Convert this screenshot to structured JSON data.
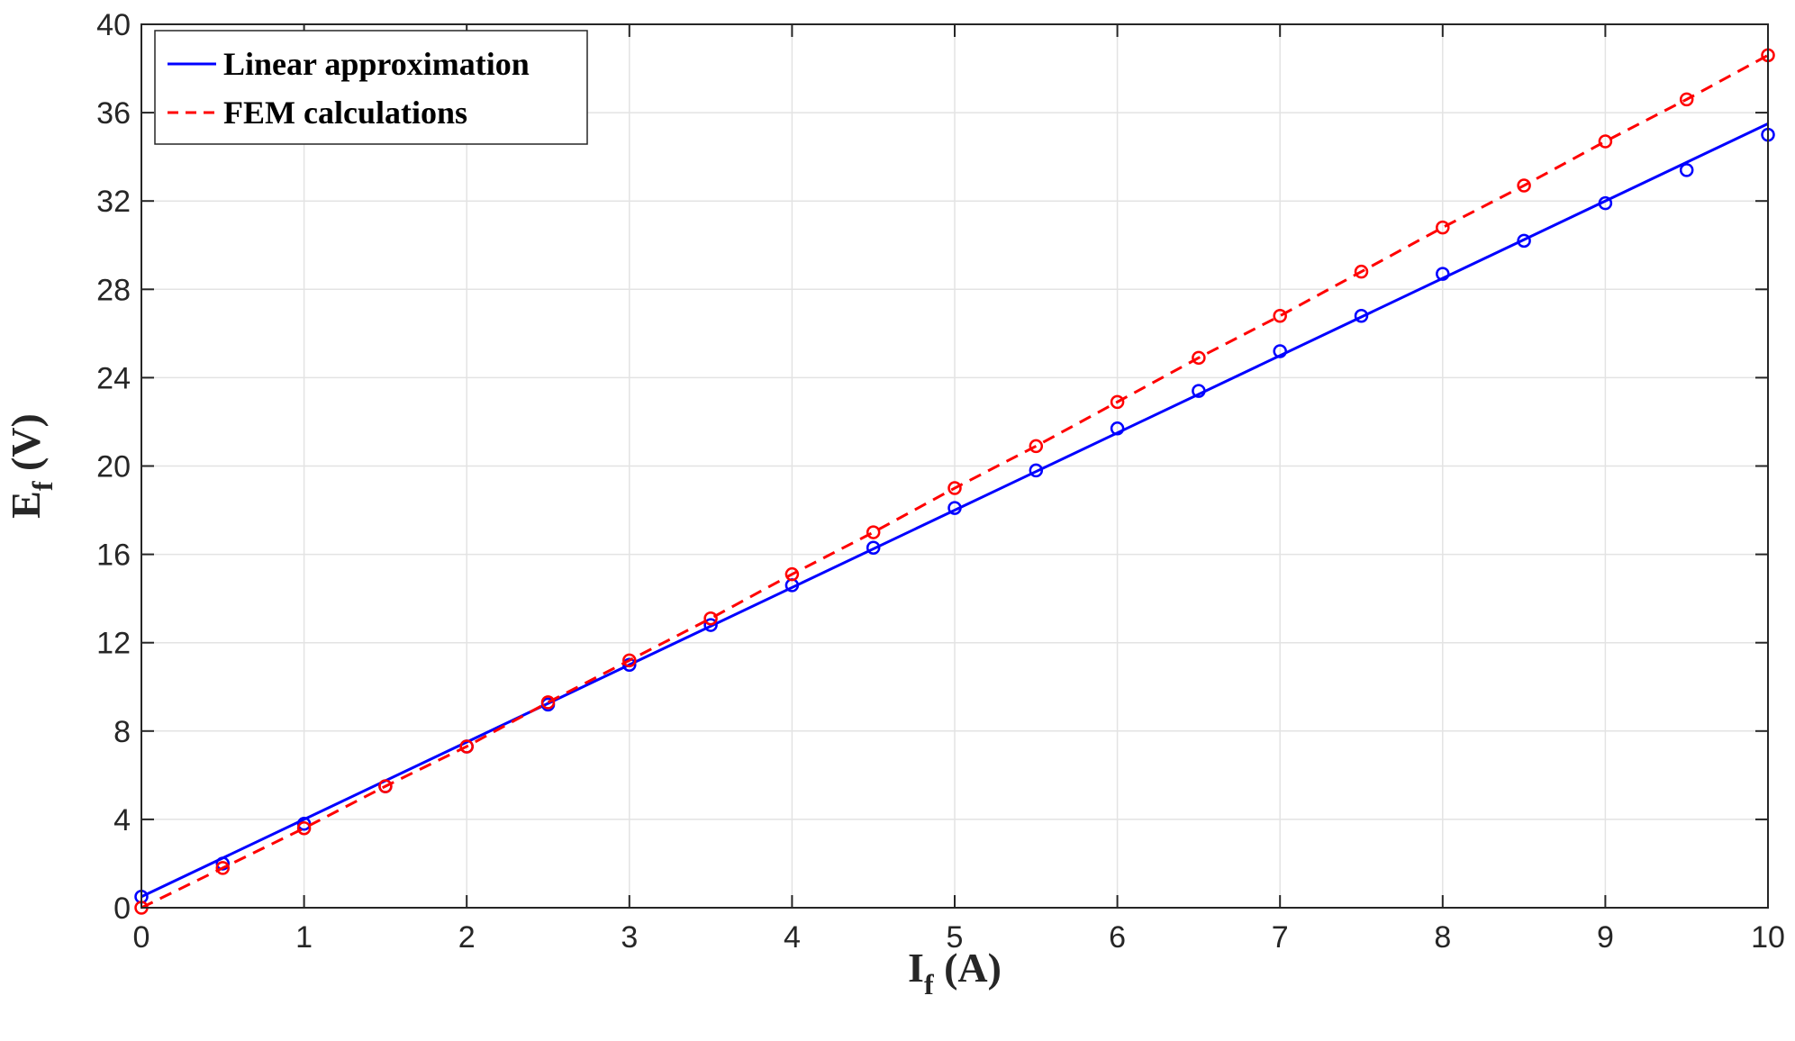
{
  "chart_data": {
    "type": "line",
    "title": "",
    "xlabel": {
      "main": "I",
      "sub": "f",
      "unit": " (A)"
    },
    "ylabel": {
      "main": "E",
      "sub": "f",
      "unit": " (V)"
    },
    "xlim": [
      0,
      10
    ],
    "ylim": [
      0,
      40
    ],
    "xticks": [
      0,
      1,
      2,
      3,
      4,
      5,
      6,
      7,
      8,
      9,
      10
    ],
    "yticks": [
      0,
      4,
      8,
      12,
      16,
      20,
      24,
      28,
      32,
      36,
      40
    ],
    "grid": true,
    "legend_position": "top-left",
    "series": [
      {
        "name": "Linear approximation",
        "color": "#0000ff",
        "line_style": "solid",
        "line_x": [
          0,
          10
        ],
        "line_y": [
          0.5,
          35.5
        ],
        "x": [
          0,
          0.5,
          1,
          1.5,
          2,
          2.5,
          3,
          3.5,
          4,
          4.5,
          5,
          5.5,
          6,
          6.5,
          7,
          7.5,
          8,
          8.5,
          9,
          9.5,
          10
        ],
        "y": [
          0.5,
          2.0,
          3.8,
          5.5,
          7.3,
          9.2,
          11.0,
          12.8,
          14.6,
          16.3,
          18.1,
          19.8,
          21.7,
          23.4,
          25.2,
          26.8,
          28.7,
          30.2,
          31.9,
          33.4,
          35.0
        ]
      },
      {
        "name": "FEM calculations",
        "color": "#ff0000",
        "line_style": "dashed",
        "line_x": [
          0,
          0.5,
          1,
          1.5,
          2,
          2.5,
          3,
          3.5,
          4,
          4.5,
          5,
          5.5,
          6,
          6.5,
          7,
          7.5,
          8,
          8.5,
          9,
          9.5,
          10
        ],
        "line_y": [
          0.0,
          1.8,
          3.6,
          5.5,
          7.3,
          9.3,
          11.2,
          13.1,
          15.1,
          17.0,
          19.0,
          20.9,
          22.9,
          24.9,
          26.8,
          28.8,
          30.8,
          32.7,
          34.7,
          36.6,
          38.6
        ],
        "x": [
          0,
          0.5,
          1,
          1.5,
          2,
          2.5,
          3,
          3.5,
          4,
          4.5,
          5,
          5.5,
          6,
          6.5,
          7,
          7.5,
          8,
          8.5,
          9,
          9.5,
          10
        ],
        "y": [
          0.0,
          1.8,
          3.6,
          5.5,
          7.3,
          9.3,
          11.2,
          13.1,
          15.1,
          17.0,
          19.0,
          20.9,
          22.9,
          24.9,
          26.8,
          28.8,
          30.8,
          32.7,
          34.7,
          36.6,
          38.6
        ]
      }
    ]
  }
}
